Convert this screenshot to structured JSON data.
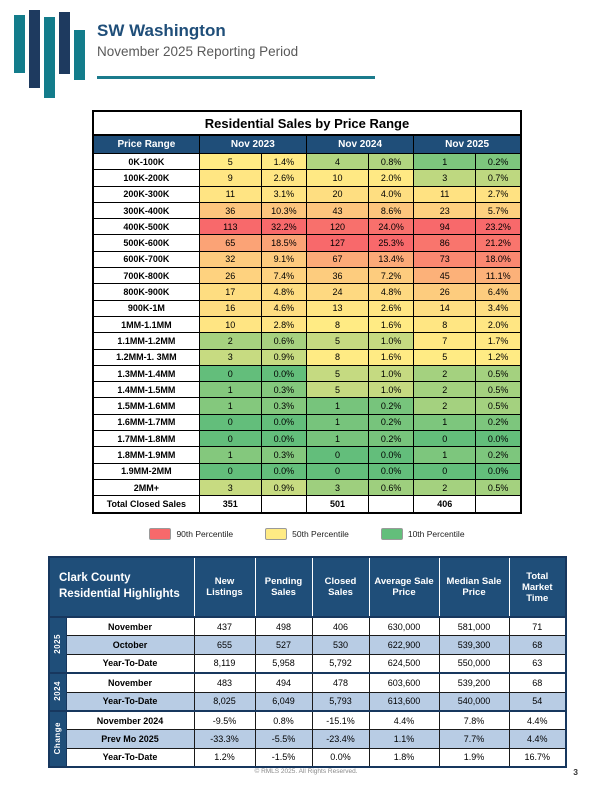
{
  "header": {
    "title": "SW Washington",
    "subtitle": "November 2025 Reporting Period"
  },
  "price_table": {
    "title": "Residential Sales by Price Range",
    "columns": [
      "Price Range",
      "Nov 2023",
      "Nov 2024",
      "Nov 2025"
    ],
    "rows": [
      {
        "range": "0K-100K",
        "values": [
          [
            5,
            "1.4%"
          ],
          [
            4,
            "0.8%"
          ],
          [
            1,
            "0.2%"
          ]
        ]
      },
      {
        "range": "100K-200K",
        "values": [
          [
            9,
            "2.6%"
          ],
          [
            10,
            "2.0%"
          ],
          [
            3,
            "0.7%"
          ]
        ]
      },
      {
        "range": "200K-300K",
        "values": [
          [
            11,
            "3.1%"
          ],
          [
            20,
            "4.0%"
          ],
          [
            11,
            "2.7%"
          ]
        ]
      },
      {
        "range": "300K-400K",
        "values": [
          [
            36,
            "10.3%"
          ],
          [
            43,
            "8.6%"
          ],
          [
            23,
            "5.7%"
          ]
        ]
      },
      {
        "range": "400K-500K",
        "values": [
          [
            113,
            "32.2%"
          ],
          [
            120,
            "24.0%"
          ],
          [
            94,
            "23.2%"
          ]
        ]
      },
      {
        "range": "500K-600K",
        "values": [
          [
            65,
            "18.5%"
          ],
          [
            127,
            "25.3%"
          ],
          [
            86,
            "21.2%"
          ]
        ]
      },
      {
        "range": "600K-700K",
        "values": [
          [
            32,
            "9.1%"
          ],
          [
            67,
            "13.4%"
          ],
          [
            73,
            "18.0%"
          ]
        ]
      },
      {
        "range": "700K-800K",
        "values": [
          [
            26,
            "7.4%"
          ],
          [
            36,
            "7.2%"
          ],
          [
            45,
            "11.1%"
          ]
        ]
      },
      {
        "range": "800K-900K",
        "values": [
          [
            17,
            "4.8%"
          ],
          [
            24,
            "4.8%"
          ],
          [
            26,
            "6.4%"
          ]
        ]
      },
      {
        "range": "900K-1M",
        "values": [
          [
            16,
            "4.6%"
          ],
          [
            13,
            "2.6%"
          ],
          [
            14,
            "3.4%"
          ]
        ]
      },
      {
        "range": "1MM-1.1MM",
        "values": [
          [
            10,
            "2.8%"
          ],
          [
            8,
            "1.6%"
          ],
          [
            8,
            "2.0%"
          ]
        ]
      },
      {
        "range": "1.1MM-1.2MM",
        "values": [
          [
            2,
            "0.6%"
          ],
          [
            5,
            "1.0%"
          ],
          [
            7,
            "1.7%"
          ]
        ]
      },
      {
        "range": "1.2MM-1. 3MM",
        "values": [
          [
            3,
            "0.9%"
          ],
          [
            8,
            "1.6%"
          ],
          [
            5,
            "1.2%"
          ]
        ]
      },
      {
        "range": "1.3MM-1.4MM",
        "values": [
          [
            0,
            "0.0%"
          ],
          [
            5,
            "1.0%"
          ],
          [
            2,
            "0.5%"
          ]
        ]
      },
      {
        "range": "1.4MM-1.5MM",
        "values": [
          [
            1,
            "0.3%"
          ],
          [
            5,
            "1.0%"
          ],
          [
            2,
            "0.5%"
          ]
        ]
      },
      {
        "range": "1.5MM-1.6MM",
        "values": [
          [
            1,
            "0.3%"
          ],
          [
            1,
            "0.2%"
          ],
          [
            2,
            "0.5%"
          ]
        ]
      },
      {
        "range": "1.6MM-1.7MM",
        "values": [
          [
            0,
            "0.0%"
          ],
          [
            1,
            "0.2%"
          ],
          [
            1,
            "0.2%"
          ]
        ]
      },
      {
        "range": "1.7MM-1.8MM",
        "values": [
          [
            0,
            "0.0%"
          ],
          [
            1,
            "0.2%"
          ],
          [
            0,
            "0.0%"
          ]
        ]
      },
      {
        "range": "1.8MM-1.9MM",
        "values": [
          [
            1,
            "0.3%"
          ],
          [
            0,
            "0.0%"
          ],
          [
            1,
            "0.2%"
          ]
        ]
      },
      {
        "range": "1.9MM-2MM",
        "values": [
          [
            0,
            "0.0%"
          ],
          [
            0,
            "0.0%"
          ],
          [
            0,
            "0.0%"
          ]
        ]
      },
      {
        "range": "2MM+",
        "values": [
          [
            3,
            "0.9%"
          ],
          [
            3,
            "0.6%"
          ],
          [
            2,
            "0.5%"
          ]
        ]
      }
    ],
    "total_row": {
      "label": "Total Closed Sales",
      "values": [
        "351",
        "501",
        "406"
      ]
    },
    "heat_colors": {
      "min": "#63BE7B",
      "mid": "#FFEB84",
      "max": "#F8696B"
    },
    "legend": [
      {
        "color": "#F8696B",
        "label": "90th Percentile"
      },
      {
        "color": "#FFEB84",
        "label": "50th Percentile"
      },
      {
        "color": "#63BE7B",
        "label": "10th Percentile"
      }
    ]
  },
  "highlights_table": {
    "title": "Clark County Residential Highlights",
    "columns": [
      "New Listings",
      "Pending Sales",
      "Closed Sales",
      "Average Sale Price",
      "Median Sale Price",
      "Total Market Time"
    ],
    "groups": [
      {
        "label": "2025",
        "rows": [
          {
            "label": "November",
            "shaded": false,
            "values": [
              "437",
              "498",
              "406",
              "630,000",
              "581,000",
              "71"
            ]
          },
          {
            "label": "October",
            "shaded": true,
            "values": [
              "655",
              "527",
              "530",
              "622,900",
              "539,300",
              "68"
            ]
          },
          {
            "label": "Year-To-Date",
            "shaded": false,
            "values": [
              "8,119",
              "5,958",
              "5,792",
              "624,500",
              "550,000",
              "63"
            ]
          }
        ]
      },
      {
        "label": "2024",
        "rows": [
          {
            "label": "November",
            "shaded": false,
            "values": [
              "483",
              "494",
              "478",
              "603,600",
              "539,200",
              "68"
            ]
          },
          {
            "label": "Year-To-Date",
            "shaded": true,
            "values": [
              "8,025",
              "6,049",
              "5,793",
              "613,600",
              "540,000",
              "54"
            ]
          }
        ]
      },
      {
        "label": "Change",
        "rows": [
          {
            "label": "November 2024",
            "shaded": false,
            "values": [
              "-9.5%",
              "0.8%",
              "-15.1%",
              "4.4%",
              "7.8%",
              "4.4%"
            ]
          },
          {
            "label": "Prev Mo 2025",
            "shaded": true,
            "values": [
              "-33.3%",
              "-5.5%",
              "-23.4%",
              "1.1%",
              "7.7%",
              "4.4%"
            ]
          },
          {
            "label": "Year-To-Date",
            "shaded": false,
            "values": [
              "1.2%",
              "-1.5%",
              "0.0%",
              "1.8%",
              "1.9%",
              "16.7%"
            ]
          }
        ]
      }
    ]
  },
  "footer": {
    "copyright": "© RMLS 2025. All Rights Reserved.",
    "page": "3"
  },
  "colors": {
    "header_blue": "#1F4E79",
    "group_border_navy": "#17375E",
    "row_shade_blue": "#B8CCE4",
    "logo_teal": "#137C8B",
    "logo_navy": "#1E3A5F",
    "underline_teal": "#1B7B8C",
    "subtitle_gray": "#595959"
  }
}
